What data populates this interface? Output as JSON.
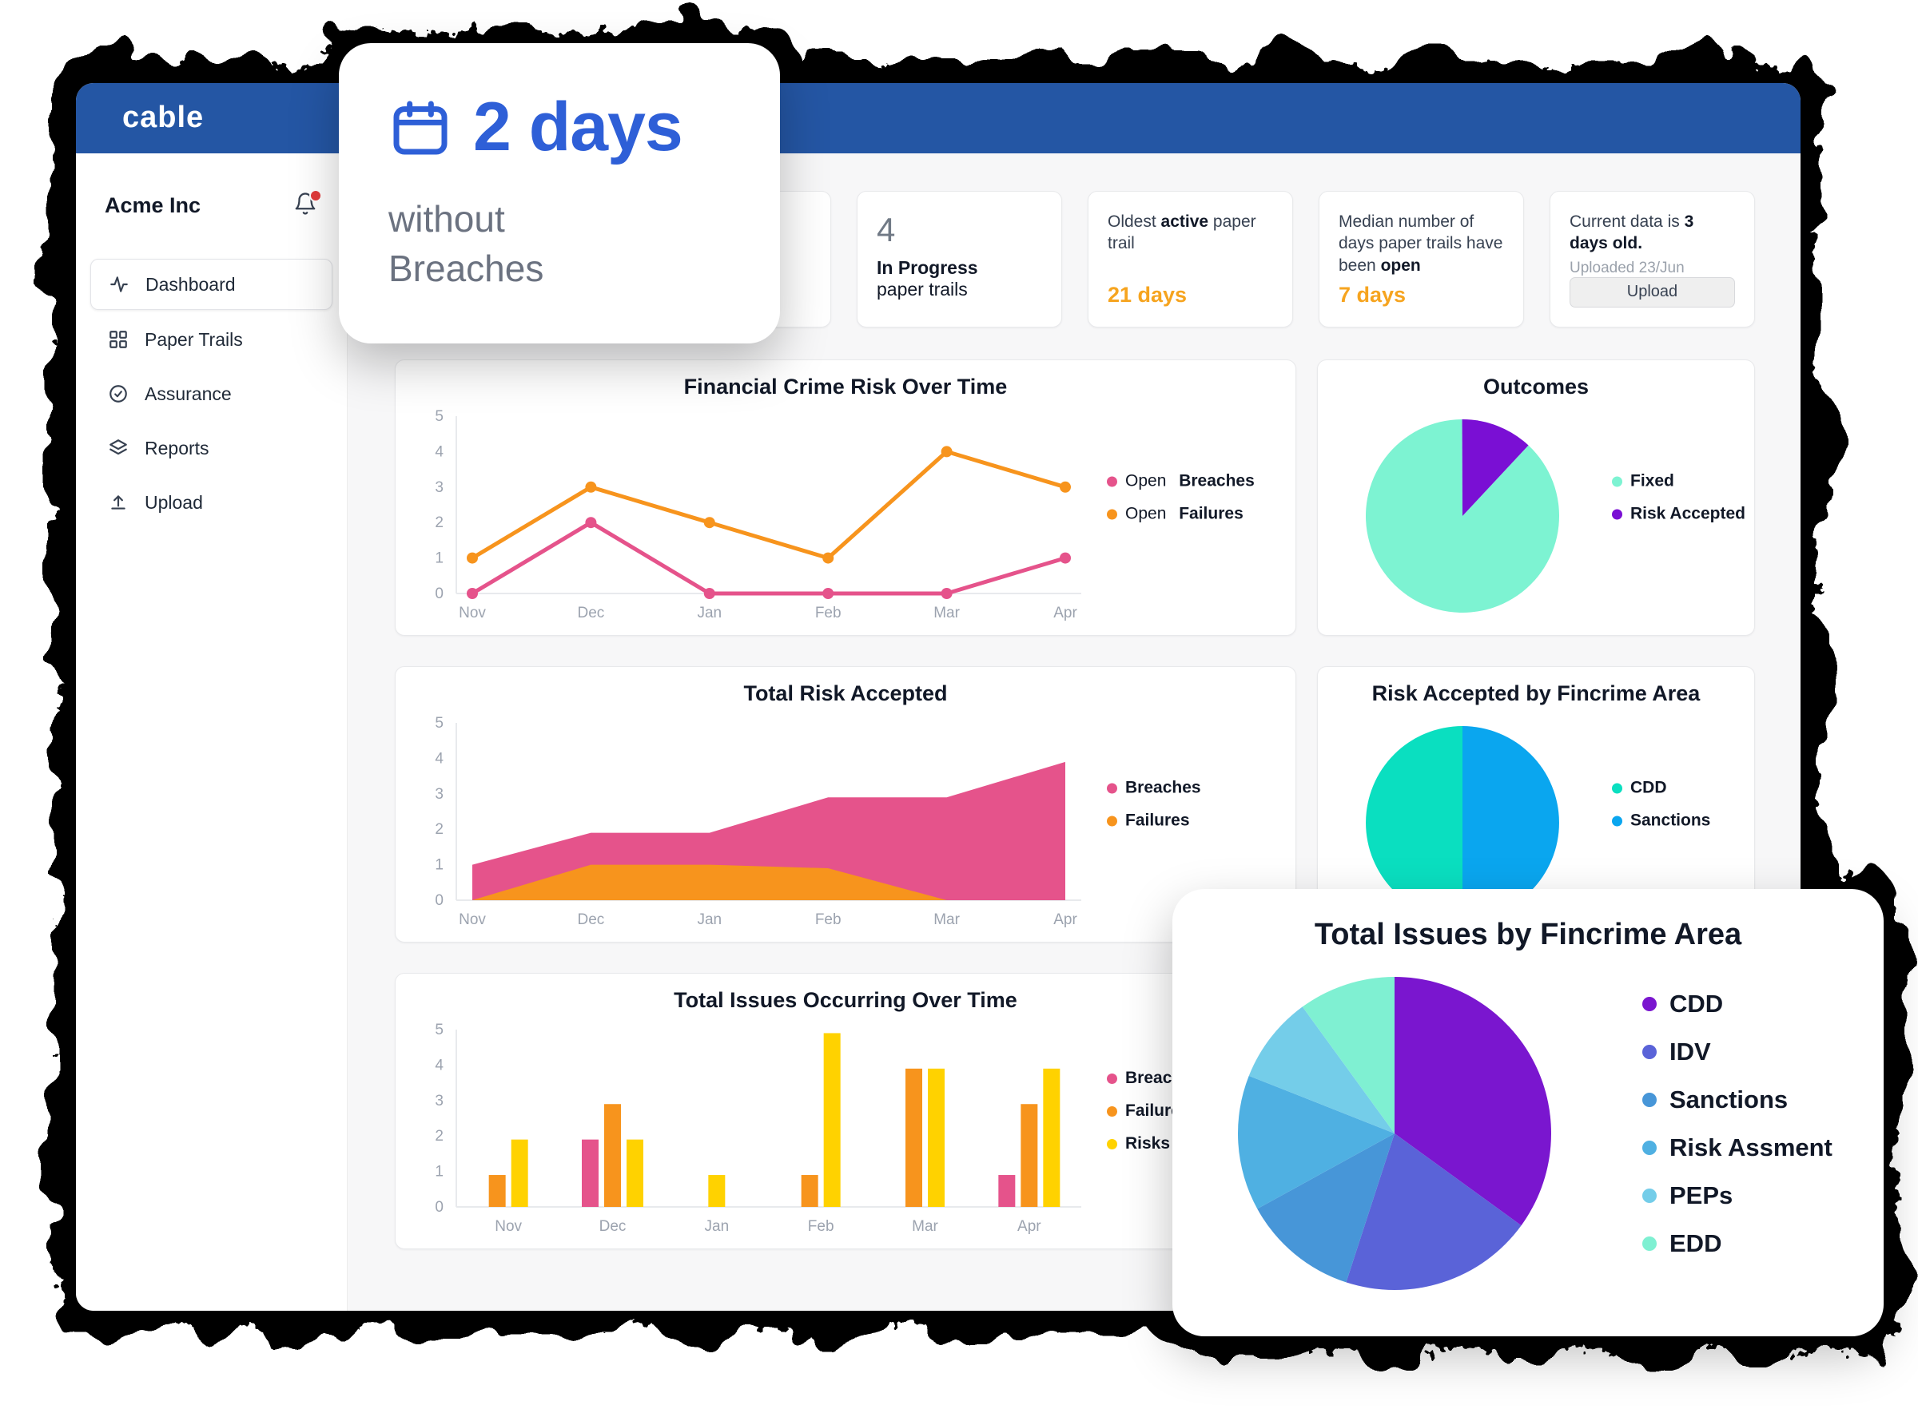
{
  "brand": {
    "logo": "cable",
    "topbar_color": "#2456a4",
    "accent_blue": "#2e5fd7",
    "accent_orange": "#f6a41f"
  },
  "sidebar": {
    "company": "Acme Inc",
    "items": [
      {
        "label": "Dashboard",
        "icon": "activity-icon",
        "active": true
      },
      {
        "label": "Paper Trails",
        "icon": "grid-icon",
        "active": false
      },
      {
        "label": "Assurance",
        "icon": "check-circle-icon",
        "active": false
      },
      {
        "label": "Reports",
        "icon": "layers-icon",
        "active": false
      },
      {
        "label": "Upload",
        "icon": "upload-icon",
        "active": false
      }
    ]
  },
  "hero_card": {
    "value": "2 days",
    "subtitle": "without Breaches",
    "icon": "calendar-icon"
  },
  "stats": {
    "in_progress": {
      "value": "4",
      "bold": "In Progress",
      "rest": "paper trails"
    },
    "oldest": {
      "pre": "Oldest ",
      "bold": "active",
      "rest": " paper trail",
      "value": "21 days"
    },
    "median": {
      "pre": "Median number of days paper trails have been ",
      "bold": "open",
      "value": "7 days"
    },
    "data_age": {
      "pre": "Current data is ",
      "bold": "3 days old.",
      "sub": "Uploaded 23/Jun",
      "button": "Upload"
    }
  },
  "chart_data": [
    {
      "id": "fincrime_risk",
      "type": "line",
      "title": "Financial Crime Risk Over Time",
      "categories": [
        "Nov",
        "Dec",
        "Jan",
        "Feb",
        "Mar",
        "Apr"
      ],
      "ylim": [
        0,
        5
      ],
      "grid": false,
      "legend_position": "right",
      "series": [
        {
          "prefix": "Open ",
          "name": "Breaches",
          "color": "#e5538b",
          "values": [
            0,
            2,
            0,
            0,
            0,
            1
          ]
        },
        {
          "prefix": "Open ",
          "name": "Failures",
          "color": "#f7941d",
          "values": [
            1,
            3,
            2,
            1,
            4,
            3
          ]
        }
      ]
    },
    {
      "id": "outcomes",
      "type": "pie",
      "title": "Outcomes",
      "rotate": 43,
      "legend_position": "right",
      "slices": [
        {
          "label": "Fixed",
          "value": 88,
          "color": "#7df3d2"
        },
        {
          "label": "Risk Accepted",
          "value": 12,
          "color": "#7a0fd4"
        }
      ]
    },
    {
      "id": "total_risk_accepted",
      "type": "area",
      "title": "Total Risk Accepted",
      "categories": [
        "Nov",
        "Dec",
        "Jan",
        "Feb",
        "Mar",
        "Apr"
      ],
      "ylim": [
        0,
        5
      ],
      "grid": false,
      "legend_position": "right",
      "series": [
        {
          "prefix": "",
          "name": "Breaches",
          "color": "#e5538b",
          "values": [
            1,
            1.9,
            1.9,
            2.9,
            2.9,
            3.9
          ]
        },
        {
          "prefix": "",
          "name": "Failures",
          "color": "#f7941d",
          "values": [
            0,
            1,
            1,
            0.9,
            0,
            0
          ]
        }
      ]
    },
    {
      "id": "risk_by_area",
      "type": "pie",
      "title": "Risk Accepted by Fincrime Area",
      "rotate": 180,
      "legend_position": "right",
      "slices": [
        {
          "label": "CDD",
          "value": 50,
          "color": "#0adfc0"
        },
        {
          "label": "Sanctions",
          "value": 50,
          "color": "#0aa6ef"
        }
      ]
    },
    {
      "id": "issues_over_time",
      "type": "bar",
      "title": "Total Issues Occurring Over Time",
      "categories": [
        "Nov",
        "Dec",
        "Jan",
        "Feb",
        "Mar",
        "Apr"
      ],
      "ylim": [
        0,
        5
      ],
      "grid": false,
      "legend_position": "right",
      "series": [
        {
          "prefix": "",
          "name": "Breaches",
          "color": "#e5538b",
          "values": [
            0,
            1.9,
            0,
            0,
            0,
            0.9
          ]
        },
        {
          "prefix": "",
          "name": "Failures",
          "color": "#f7941d",
          "values": [
            0.9,
            2.9,
            0,
            0.9,
            3.9,
            2.9
          ]
        },
        {
          "prefix": "",
          "name": "Risks",
          "color": "#ffd200",
          "values": [
            1.9,
            1.9,
            0.9,
            4.9,
            3.9,
            3.9
          ]
        }
      ]
    },
    {
      "id": "issues_by_area",
      "type": "pie",
      "title": "Total Issues by Fincrime Area",
      "rotate": 0,
      "legend_position": "right",
      "slices": [
        {
          "label": "CDD",
          "value": 35,
          "color": "#7a16cf"
        },
        {
          "label": "IDV",
          "value": 20,
          "color": "#5a63d8"
        },
        {
          "label": "Sanctions",
          "value": 12,
          "color": "#4796d8"
        },
        {
          "label": "Risk Assment",
          "value": 14,
          "color": "#4fb0e2"
        },
        {
          "label": "PEPs",
          "value": 9,
          "color": "#74cde9"
        },
        {
          "label": "EDD",
          "value": 10,
          "color": "#7ff0d2"
        }
      ]
    }
  ]
}
